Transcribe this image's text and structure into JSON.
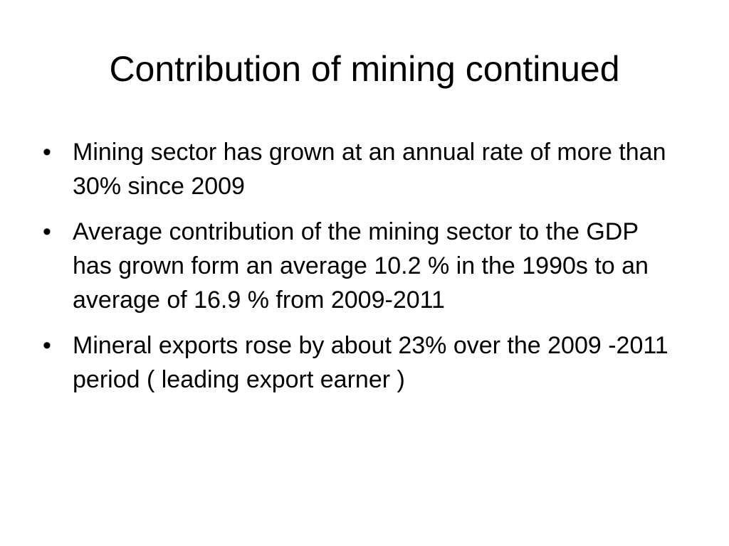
{
  "slide": {
    "title": "Contribution of mining continued",
    "bullet_glyph": "•",
    "bullets": [
      "Mining sector has grown at an annual rate of more than 30% since 2009",
      "Average contribution of the mining sector to the GDP has grown form an average 10.2 % in the 1990s to an average of 16.9 % from 2009-2011",
      "Mineral exports rose by about 23% over the 2009 -2011 period ( leading export earner )"
    ]
  }
}
